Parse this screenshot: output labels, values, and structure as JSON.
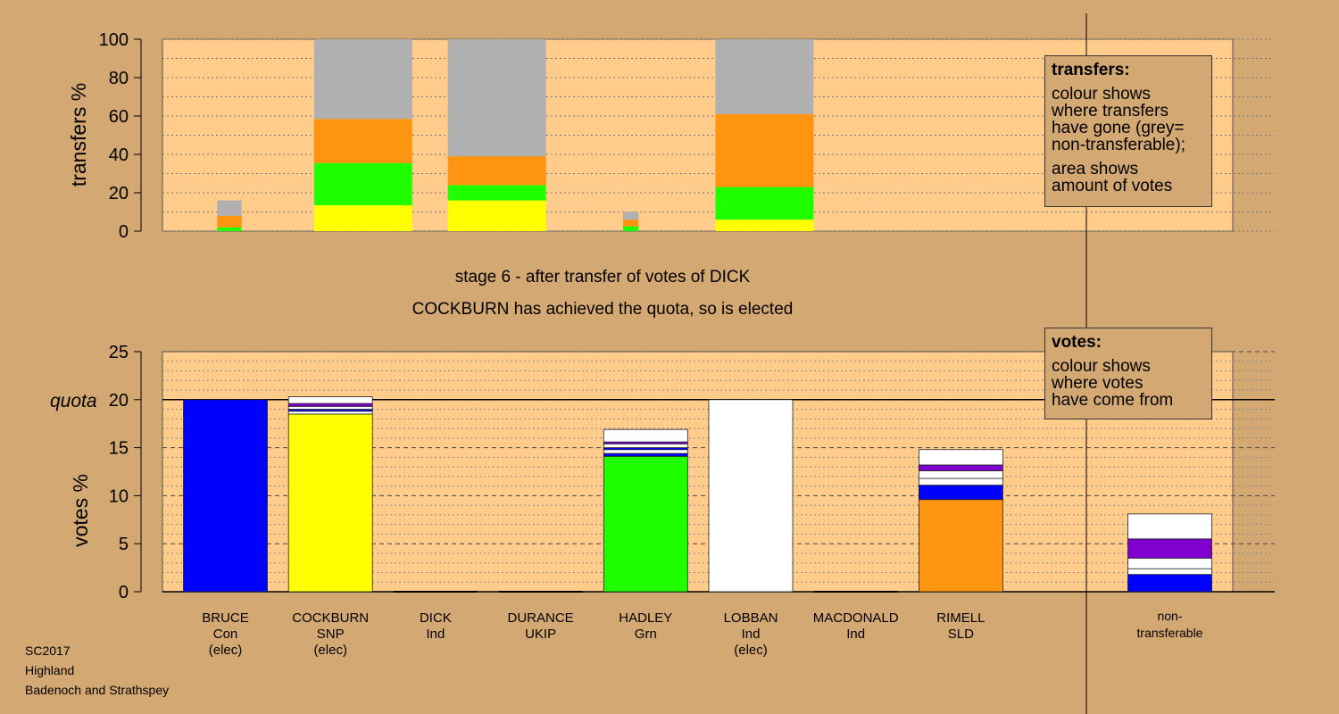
{
  "chart_data": [
    {
      "type": "bar",
      "stacked": true,
      "title": "transfers",
      "ylabel": "transfers %",
      "ylim": [
        0,
        100
      ],
      "yticks": [
        0,
        20,
        40,
        60,
        80,
        100
      ],
      "grid": true,
      "categories": [
        "BRUCE",
        "COCKBURN",
        "DICK",
        "DURANCE",
        "HADLEY",
        "LOBBAN",
        "MACDONALD",
        "RIMELL",
        "non-transferable"
      ],
      "bars": [
        {
          "stage": 1,
          "segments": [
            {
              "color": "#1fff00",
              "value": 2
            },
            {
              "color": "#ff9410",
              "value": 6
            },
            {
              "color": "#b0b0b0",
              "value": 8
            }
          ]
        },
        {
          "stage": 2,
          "segments": [
            {
              "color": "#ffff00",
              "value": 13.5
            },
            {
              "color": "#1fff00",
              "value": 22
            },
            {
              "color": "#ff9410",
              "value": 23
            },
            {
              "color": "#b0b0b0",
              "value": 41.5
            }
          ]
        },
        {
          "stage": 3,
          "segments": [
            {
              "color": "#ffff00",
              "value": 16
            },
            {
              "color": "#1fff00",
              "value": 8
            },
            {
              "color": "#ff9410",
              "value": 15
            },
            {
              "color": "#b0b0b0",
              "value": 61
            }
          ]
        },
        {
          "stage": 4,
          "segments": [
            {
              "color": "#1fff00",
              "value": 2.5
            },
            {
              "color": "#ff9410",
              "value": 3.5
            },
            {
              "color": "#b0b0b0",
              "value": 4
            }
          ]
        },
        {
          "stage": 5,
          "segments": [
            {
              "color": "#ffff00",
              "value": 6
            },
            {
              "color": "#1fff00",
              "value": 17
            },
            {
              "color": "#ff9410",
              "value": 38
            },
            {
              "color": "#b0b0b0",
              "value": 39
            }
          ]
        }
      ]
    },
    {
      "type": "bar",
      "stacked": true,
      "title": "votes",
      "ylabel": "votes %",
      "ylim": [
        0,
        25
      ],
      "yticks": [
        0,
        5,
        10,
        15,
        20,
        25
      ],
      "quota": 20,
      "quota_label": "quota",
      "grid": true,
      "candidates": [
        {
          "name": "BRUCE",
          "party": "Con",
          "status": "(elec)",
          "segments": [
            {
              "color": "#0000ff",
              "value": 20
            }
          ]
        },
        {
          "name": "COCKBURN",
          "party": "SNP",
          "status": "(elec)",
          "segments": [
            {
              "color": "#ffff00",
              "value": 18.5
            },
            {
              "color": "#ffffff",
              "value": 0.3
            },
            {
              "color": "#0000ff",
              "value": 0.2
            },
            {
              "color": "#ffffff",
              "value": 0.3
            },
            {
              "color": "#8000d0",
              "value": 0.3
            },
            {
              "color": "#ffffff",
              "value": 0.7
            }
          ]
        },
        {
          "name": "DICK",
          "party": "Ind",
          "status": "",
          "segments": []
        },
        {
          "name": "DURANCE",
          "party": "UKIP",
          "status": "",
          "segments": []
        },
        {
          "name": "HADLEY",
          "party": "Grn",
          "status": "",
          "segments": [
            {
              "color": "#1fff00",
              "value": 14.1
            },
            {
              "color": "#0000ff",
              "value": 0.3
            },
            {
              "color": "#ffffff",
              "value": 0.4
            },
            {
              "color": "#0000ff",
              "value": 0.2
            },
            {
              "color": "#ffffff",
              "value": 0.4
            },
            {
              "color": "#8000d0",
              "value": 0.2
            },
            {
              "color": "#ffffff",
              "value": 1.3
            }
          ]
        },
        {
          "name": "LOBBAN",
          "party": "Ind",
          "status": "(elec)",
          "segments": [
            {
              "color": "#ffffff",
              "value": 20
            }
          ]
        },
        {
          "name": "MACDONALD",
          "party": "Ind",
          "status": "",
          "segments": []
        },
        {
          "name": "RIMELL",
          "party": "SLD",
          "status": "",
          "segments": [
            {
              "color": "#ff9410",
              "value": 9.6
            },
            {
              "color": "#0000ff",
              "value": 1.5
            },
            {
              "color": "#ffffff",
              "value": 0.7
            },
            {
              "color": "#ffffff",
              "value": 0.8
            },
            {
              "color": "#8000d0",
              "value": 0.6
            },
            {
              "color": "#ffffff",
              "value": 1.6
            }
          ]
        }
      ],
      "nontransferable": {
        "label_line1": "non-",
        "label_line2": "transferable",
        "segments": [
          {
            "color": "#0000ff",
            "value": 1.8
          },
          {
            "color": "#ffffff",
            "value": 0.6
          },
          {
            "color": "#ffffff",
            "value": 1.1
          },
          {
            "color": "#8000d0",
            "value": 2
          },
          {
            "color": "#ffffff",
            "value": 2.6
          }
        ]
      }
    }
  ],
  "stage_title": "stage 6 - after transfer of votes of DICK",
  "stage_result": "COCKBURN has achieved the quota, so is elected",
  "transfers_legend": {
    "heading": "transfers:",
    "lines1": [
      "colour shows",
      "where transfers",
      "have gone (grey=",
      "non-transferable);"
    ],
    "lines2": [
      "area shows",
      "amount of votes"
    ]
  },
  "votes_legend": {
    "heading": "votes:",
    "lines": [
      "colour shows",
      "where votes",
      "have come from"
    ]
  },
  "footer": {
    "line1": "SC2017",
    "line2": "Highland",
    "line3": "Badenoch and Strathspey"
  },
  "colors": {
    "background": "#d4a872",
    "plot": "#ffcc8c"
  }
}
